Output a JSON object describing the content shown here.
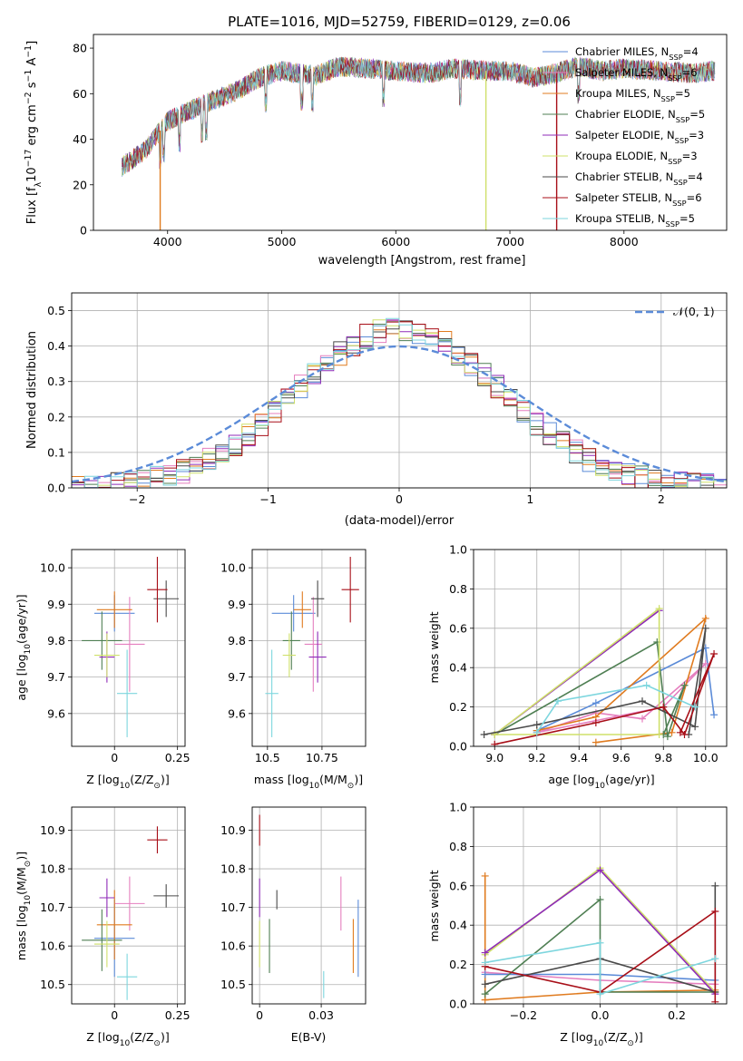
{
  "figure_title": "PLATE=1016, MJD=52759, FIBERID=0129, z=0.06",
  "models": [
    {
      "name": "Chabrier MILES",
      "n": "4",
      "color": "#5b8bd8"
    },
    {
      "name": "Salpeter MILES",
      "n": "6",
      "color": "#e57fbf"
    },
    {
      "name": "Kroupa MILES",
      "n": "5",
      "color": "#e07b1f"
    },
    {
      "name": "Chabrier ELODIE",
      "n": "5",
      "color": "#4f7f53"
    },
    {
      "name": "Salpeter ELODIE",
      "n": "3",
      "color": "#8f2bb8"
    },
    {
      "name": "Kroupa ELODIE",
      "n": "3",
      "color": "#cfe06a"
    },
    {
      "name": "Chabrier STELIB",
      "n": "4",
      "color": "#4a4a4a"
    },
    {
      "name": "Salpeter STELIB",
      "n": "6",
      "color": "#a80f18"
    },
    {
      "name": "Kroupa STELIB",
      "n": "5",
      "color": "#7dd6de"
    }
  ],
  "chart_data": [
    {
      "id": "spectrum",
      "type": "line",
      "xlabel": "wavelength [Angstrom, rest frame]",
      "ylabel": "Flux [f",
      "ylabel_sub": "λ",
      "ylabel_rest": "10",
      "ylabel_exp": "−17",
      "ylabel_tail": " erg cm",
      "xlim": [
        3350,
        8900
      ],
      "ylim": [
        0,
        86
      ],
      "xticks": [
        4000,
        5000,
        6000,
        7000,
        8000
      ],
      "yticks": [
        0,
        20,
        40,
        60,
        80
      ],
      "continuum": [
        [
          3600,
          28
        ],
        [
          3800,
          35
        ],
        [
          4000,
          48
        ],
        [
          4300,
          55
        ],
        [
          4600,
          61
        ],
        [
          4800,
          67
        ],
        [
          5000,
          70
        ],
        [
          5300,
          68
        ],
        [
          5500,
          72
        ],
        [
          5800,
          71
        ],
        [
          6000,
          70
        ],
        [
          6300,
          69
        ],
        [
          6500,
          71
        ],
        [
          6800,
          70
        ],
        [
          7000,
          70
        ],
        [
          7200,
          67
        ],
        [
          7400,
          69
        ],
        [
          7600,
          72
        ],
        [
          7800,
          70
        ],
        [
          8000,
          71
        ],
        [
          8300,
          70
        ],
        [
          8600,
          69
        ],
        [
          8800,
          70
        ]
      ],
      "dropouts": [
        [
          3935,
          0,
          "#e07b1f"
        ],
        [
          6790,
          0,
          "#cfe06a"
        ],
        [
          7410,
          0,
          "#a80f18"
        ]
      ]
    },
    {
      "id": "residuals",
      "type": "histogram",
      "xlabel": "(data-model)/error",
      "ylabel": "Normed distribution",
      "xlim": [
        -2.5,
        2.5
      ],
      "ylim": [
        0,
        0.55
      ],
      "xticks": [
        -2,
        -1,
        0,
        1,
        2
      ],
      "yticks": [
        0.0,
        0.1,
        0.2,
        0.3,
        0.4,
        0.5
      ],
      "gaussian_label": "𝒩(0, 1)"
    },
    {
      "id": "age_vs_Z",
      "type": "scatter",
      "xlabel": "Z [log",
      "xlabel_sub": "10",
      "xlabel_rest": "(Z/Z",
      "xlabel_sun": "⊙",
      "xlabel_end": ")]",
      "ylabel": "age  [log",
      "ylabel_sub": "10",
      "ylabel_rest": "(age/yr)]",
      "xlim": [
        -0.17,
        0.28
      ],
      "ylim": [
        9.51,
        10.05
      ],
      "xticks": [
        0.0,
        0.25
      ],
      "yticks": [
        9.6,
        9.7,
        9.8,
        9.9,
        10.0
      ],
      "points": [
        {
          "x": 0.0,
          "y": 9.875,
          "ex": 0.08,
          "ey": 0.05,
          "c": "#5b8bd8"
        },
        {
          "x": 0.06,
          "y": 9.79,
          "ex": 0.06,
          "ey": 0.13,
          "c": "#e57fbf"
        },
        {
          "x": 0.0,
          "y": 9.885,
          "ex": 0.07,
          "ey": 0.05,
          "c": "#e07b1f"
        },
        {
          "x": -0.05,
          "y": 9.8,
          "ex": 0.08,
          "ey": 0.08,
          "c": "#4f7f53"
        },
        {
          "x": -0.03,
          "y": 9.755,
          "ex": 0.03,
          "ey": 0.07,
          "c": "#8f2bb8"
        },
        {
          "x": -0.03,
          "y": 9.76,
          "ex": 0.05,
          "ey": 0.06,
          "c": "#cfe06a"
        },
        {
          "x": 0.205,
          "y": 9.915,
          "ex": 0.05,
          "ey": 0.05,
          "c": "#4a4a4a"
        },
        {
          "x": 0.17,
          "y": 9.94,
          "ex": 0.04,
          "ey": 0.09,
          "c": "#a80f18"
        },
        {
          "x": 0.05,
          "y": 9.655,
          "ex": 0.04,
          "ey": 0.12,
          "c": "#7dd6de"
        }
      ]
    },
    {
      "id": "age_vs_mass",
      "type": "scatter",
      "xlabel": "mass [log",
      "xlabel_sub": "10",
      "xlabel_rest": "(M/M",
      "xlabel_sun": "⊙",
      "xlabel_end": ")]",
      "xlim": [
        10.43,
        10.95
      ],
      "ylim": [
        9.51,
        10.05
      ],
      "xticks": [
        10.5,
        10.75
      ],
      "yticks": [
        9.6,
        9.7,
        9.8,
        9.9,
        10.0
      ],
      "points": [
        {
          "x": 10.62,
          "y": 9.875,
          "ex": 0.1,
          "ey": 0.05,
          "c": "#5b8bd8"
        },
        {
          "x": 10.71,
          "y": 9.79,
          "ex": 0.04,
          "ey": 0.13,
          "c": "#e57fbf"
        },
        {
          "x": 10.66,
          "y": 9.885,
          "ex": 0.04,
          "ey": 0.05,
          "c": "#e07b1f"
        },
        {
          "x": 10.61,
          "y": 9.8,
          "ex": 0.04,
          "ey": 0.08,
          "c": "#4f7f53"
        },
        {
          "x": 10.73,
          "y": 9.755,
          "ex": 0.04,
          "ey": 0.07,
          "c": "#8f2bb8"
        },
        {
          "x": 10.6,
          "y": 9.76,
          "ex": 0.03,
          "ey": 0.06,
          "c": "#cfe06a"
        },
        {
          "x": 10.73,
          "y": 9.915,
          "ex": 0.03,
          "ey": 0.05,
          "c": "#4a4a4a"
        },
        {
          "x": 10.88,
          "y": 9.94,
          "ex": 0.04,
          "ey": 0.09,
          "c": "#a80f18"
        },
        {
          "x": 10.52,
          "y": 9.655,
          "ex": 0.03,
          "ey": 0.12,
          "c": "#7dd6de"
        }
      ]
    },
    {
      "id": "weight_vs_age",
      "type": "line",
      "xlabel": "age  [log",
      "xlabel_sub": "10",
      "xlabel_rest": "(age/yr)]",
      "ylabel": "mass weight",
      "xlim": [
        8.9,
        10.1
      ],
      "ylim": [
        0,
        1.0
      ],
      "xticks": [
        9.0,
        9.2,
        9.4,
        9.6,
        9.8,
        10.0
      ],
      "yticks": [
        0.0,
        0.2,
        0.4,
        0.6,
        0.8,
        1.0
      ],
      "series": [
        {
          "c": "#5b8bd8",
          "p": [
            [
              9.2,
              0.08
            ],
            [
              9.48,
              0.22
            ],
            [
              10.0,
              0.5
            ],
            [
              10.04,
              0.16
            ]
          ]
        },
        {
          "c": "#e57fbf",
          "p": [
            [
              9.2,
              0.07
            ],
            [
              9.48,
              0.17
            ],
            [
              9.7,
              0.14
            ],
            [
              10.0,
              0.42
            ],
            [
              9.8,
              0.2
            ],
            [
              9.2,
              0.07
            ]
          ]
        },
        {
          "c": "#e07b1f",
          "p": [
            [
              9.48,
              0.02
            ],
            [
              9.84,
              0.07
            ],
            [
              10.0,
              0.65
            ],
            [
              9.48,
              0.15
            ],
            [
              9.2,
              0.08
            ]
          ]
        },
        {
          "c": "#4f7f53",
          "p": [
            [
              9.0,
              0.06
            ],
            [
              9.77,
              0.53
            ],
            [
              9.82,
              0.05
            ],
            [
              9.9,
              0.31
            ],
            [
              9.8,
              0.06
            ]
          ]
        },
        {
          "c": "#8f2bb8",
          "p": [
            [
              9.0,
              0.06
            ],
            [
              9.78,
              0.69
            ],
            [
              9.0,
              0.06
            ]
          ]
        },
        {
          "c": "#cfe06a",
          "p": [
            [
              9.0,
              0.06
            ],
            [
              9.78,
              0.7
            ],
            [
              9.78,
              0.06
            ],
            [
              9.0,
              0.06
            ]
          ]
        },
        {
          "c": "#4a4a4a",
          "p": [
            [
              8.95,
              0.06
            ],
            [
              9.2,
              0.11
            ],
            [
              9.7,
              0.23
            ],
            [
              9.95,
              0.1
            ],
            [
              10.0,
              0.6
            ],
            [
              9.92,
              0.06
            ]
          ]
        },
        {
          "c": "#a80f18",
          "p": [
            [
              9.0,
              0.01
            ],
            [
              9.48,
              0.12
            ],
            [
              9.8,
              0.2
            ],
            [
              9.9,
              0.06
            ],
            [
              10.04,
              0.47
            ],
            [
              9.88,
              0.07
            ]
          ]
        },
        {
          "c": "#7dd6de",
          "p": [
            [
              9.2,
              0.07
            ],
            [
              9.3,
              0.23
            ],
            [
              9.72,
              0.31
            ],
            [
              9.95,
              0.2
            ]
          ]
        }
      ]
    },
    {
      "id": "mass_vs_Z",
      "type": "scatter",
      "xlabel": "Z [log",
      "xlabel_sub": "10",
      "xlabel_rest": "(Z/Z",
      "xlabel_sun": "⊙",
      "xlabel_end": ")]",
      "ylabel": "mass [log",
      "ylabel_sub": "10",
      "ylabel_rest": "(M/M",
      "ylabel_sun": "⊙",
      "ylabel_end": ")]",
      "xlim": [
        -0.17,
        0.28
      ],
      "ylim": [
        10.45,
        10.96
      ],
      "xticks": [
        0.0,
        0.25
      ],
      "yticks": [
        10.5,
        10.6,
        10.7,
        10.8,
        10.9
      ],
      "points": [
        {
          "x": 0.0,
          "y": 10.62,
          "ex": 0.08,
          "ey": 0.1,
          "c": "#5b8bd8"
        },
        {
          "x": 0.06,
          "y": 10.71,
          "ex": 0.06,
          "ey": 0.07,
          "c": "#e57fbf"
        },
        {
          "x": 0.0,
          "y": 10.655,
          "ex": 0.07,
          "ey": 0.09,
          "c": "#e07b1f"
        },
        {
          "x": -0.05,
          "y": 10.615,
          "ex": 0.08,
          "ey": 0.08,
          "c": "#4f7f53"
        },
        {
          "x": -0.03,
          "y": 10.725,
          "ex": 0.03,
          "ey": 0.05,
          "c": "#8f2bb8"
        },
        {
          "x": -0.03,
          "y": 10.605,
          "ex": 0.05,
          "ey": 0.06,
          "c": "#cfe06a"
        },
        {
          "x": 0.205,
          "y": 10.73,
          "ex": 0.05,
          "ey": 0.03,
          "c": "#4a4a4a"
        },
        {
          "x": 0.17,
          "y": 10.875,
          "ex": 0.04,
          "ey": 0.035,
          "c": "#a80f18"
        },
        {
          "x": 0.05,
          "y": 10.52,
          "ex": 0.04,
          "ey": 0.06,
          "c": "#7dd6de"
        }
      ]
    },
    {
      "id": "mass_vs_ebv",
      "type": "scatter",
      "xlabel": "E(B-V)",
      "xlim": [
        -0.003,
        0.043
      ],
      "ylim": [
        10.45,
        10.96
      ],
      "xticks": [
        0.0,
        0.025
      ],
      "yticks": [
        10.5,
        10.6,
        10.7,
        10.8,
        10.9
      ],
      "points": [
        {
          "x": 0.04,
          "y": 10.62,
          "ex": 0,
          "ey": 0.1,
          "c": "#5b8bd8"
        },
        {
          "x": 0.033,
          "y": 10.71,
          "ex": 0,
          "ey": 0.07,
          "c": "#e57fbf"
        },
        {
          "x": 0.038,
          "y": 10.6,
          "ex": 0,
          "ey": 0.07,
          "c": "#e07b1f"
        },
        {
          "x": 0.004,
          "y": 10.6,
          "ex": 0,
          "ey": 0.07,
          "c": "#4f7f53"
        },
        {
          "x": 0.0,
          "y": 10.725,
          "ex": 0,
          "ey": 0.05,
          "c": "#8f2bb8"
        },
        {
          "x": 0.0,
          "y": 10.605,
          "ex": 0,
          "ey": 0.06,
          "c": "#cfe06a"
        },
        {
          "x": 0.007,
          "y": 10.72,
          "ex": 0,
          "ey": 0.025,
          "c": "#4a4a4a"
        },
        {
          "x": 0.0,
          "y": 10.9,
          "ex": 0,
          "ey": 0.04,
          "c": "#a80f18"
        },
        {
          "x": 0.026,
          "y": 10.5,
          "ex": 0,
          "ey": 0.035,
          "c": "#7dd6de"
        }
      ]
    },
    {
      "id": "weight_vs_Z",
      "type": "line",
      "xlabel": "Z [log",
      "xlabel_sub": "10",
      "xlabel_rest": "(Z/Z",
      "xlabel_sun": "⊙",
      "xlabel_end": ")]",
      "ylabel": "mass weight",
      "xlim": [
        -0.33,
        0.33
      ],
      "ylim": [
        0,
        1.0
      ],
      "xticks": [
        -0.2,
        0.0,
        0.2
      ],
      "yticks": [
        0.0,
        0.2,
        0.4,
        0.6,
        0.8,
        1.0
      ],
      "series": [
        {
          "c": "#e07b1f",
          "p": [
            [
              -0.3,
              0.65
            ],
            [
              -0.3,
              0.02
            ],
            [
              0.0,
              0.06
            ],
            [
              0.3,
              0.07
            ]
          ]
        },
        {
          "c": "#e57fbf",
          "p": [
            [
              -0.3,
              0.16
            ],
            [
              0.0,
              0.12
            ],
            [
              0.3,
              0.1
            ]
          ]
        },
        {
          "c": "#5b8bd8",
          "p": [
            [
              -0.3,
              0.15
            ],
            [
              0.0,
              0.15
            ],
            [
              0.3,
              0.12
            ]
          ]
        },
        {
          "c": "#4f7f53",
          "p": [
            [
              -0.3,
              0.05
            ],
            [
              0.0,
              0.53
            ],
            [
              0.0,
              0.06
            ],
            [
              0.3,
              0.06
            ]
          ]
        },
        {
          "c": "#cfe06a",
          "p": [
            [
              -0.3,
              0.25
            ],
            [
              0.0,
              0.69
            ],
            [
              0.3,
              0.06
            ]
          ]
        },
        {
          "c": "#8f2bb8",
          "p": [
            [
              -0.3,
              0.26
            ],
            [
              0.0,
              0.68
            ],
            [
              0.3,
              0.05
            ]
          ]
        },
        {
          "c": "#4a4a4a",
          "p": [
            [
              -0.3,
              0.1
            ],
            [
              0.0,
              0.23
            ],
            [
              0.3,
              0.06
            ],
            [
              0.3,
              0.6
            ]
          ]
        },
        {
          "c": "#a80f18",
          "p": [
            [
              -0.3,
              0.19
            ],
            [
              0.0,
              0.06
            ],
            [
              0.3,
              0.47
            ],
            [
              0.3,
              0.01
            ]
          ]
        },
        {
          "c": "#7dd6de",
          "p": [
            [
              -0.3,
              0.21
            ],
            [
              0.0,
              0.31
            ],
            [
              0.0,
              0.05
            ],
            [
              0.3,
              0.23
            ]
          ]
        }
      ]
    }
  ]
}
